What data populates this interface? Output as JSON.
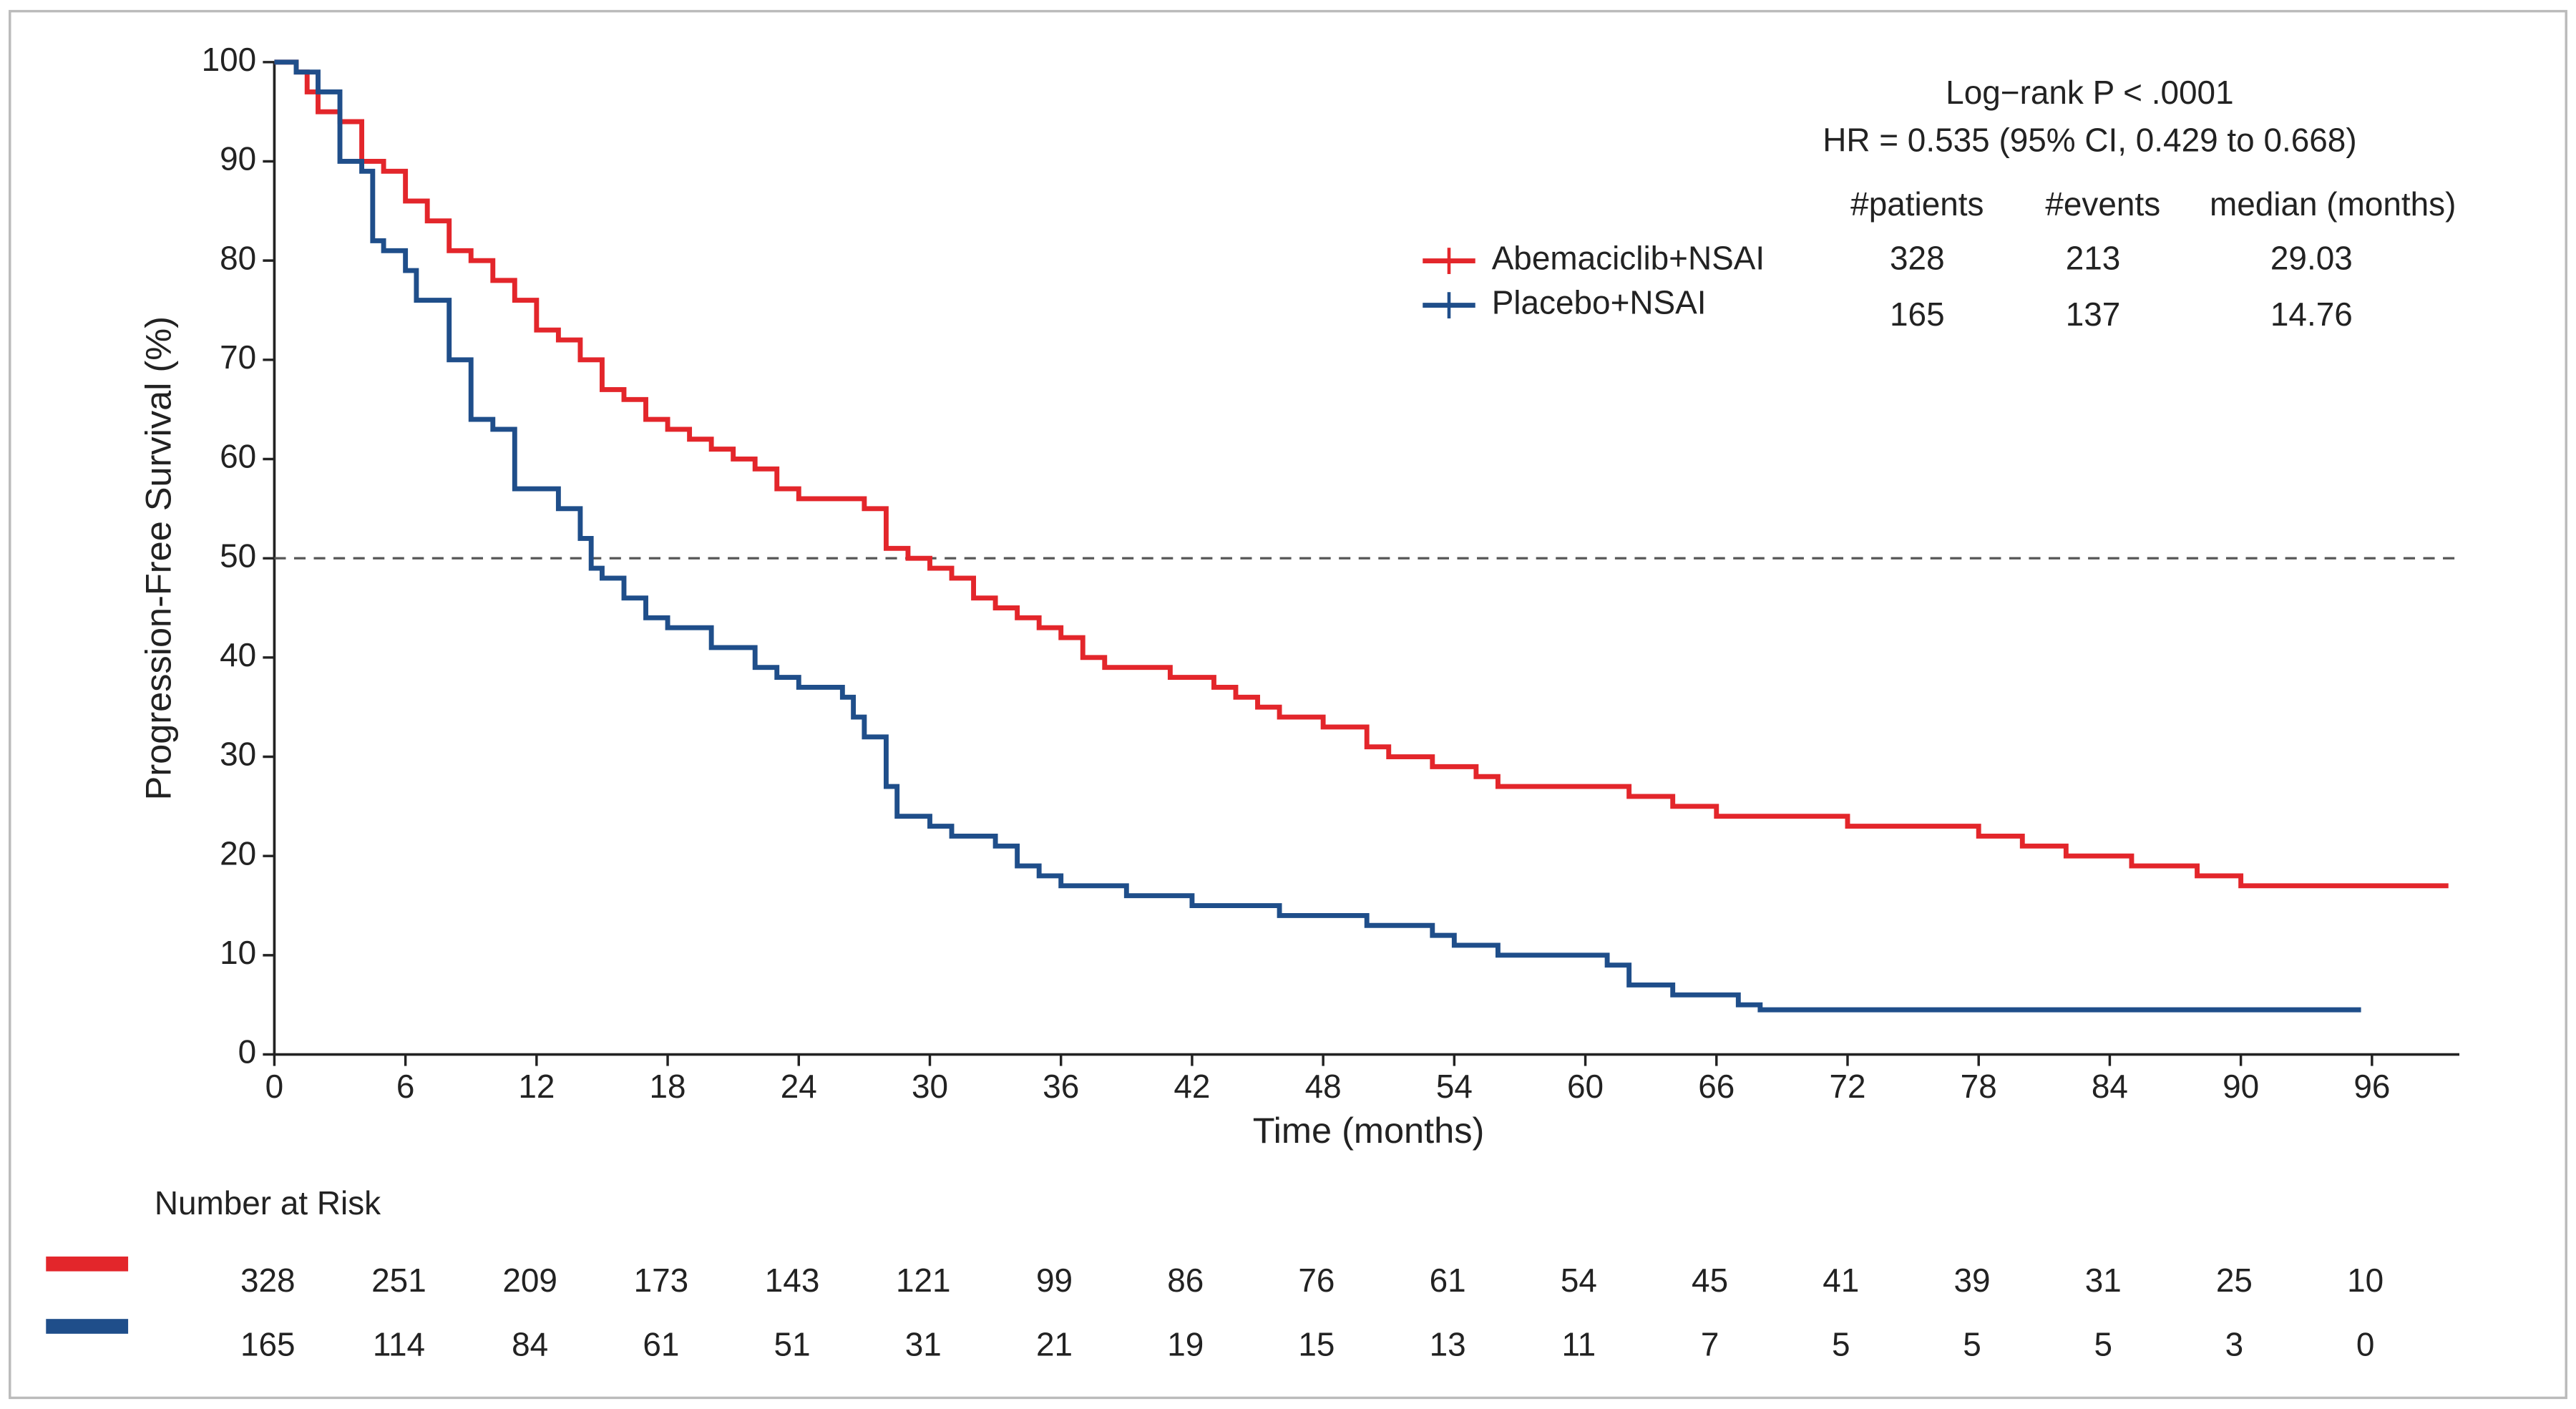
{
  "chart_data": {
    "type": "step",
    "x_label": "Time (months)",
    "y_label": "Progression-Free Survival (%)",
    "xlim": [
      0,
      100
    ],
    "ylim": [
      0,
      100
    ],
    "xticks": [
      0,
      6,
      12,
      18,
      24,
      30,
      36,
      42,
      48,
      54,
      60,
      66,
      72,
      78,
      84,
      90,
      96
    ],
    "yticks": [
      0,
      10,
      20,
      30,
      40,
      50,
      60,
      70,
      80,
      90,
      100
    ],
    "reference_line": 50,
    "annotations": [
      "Log−rank P < .0001",
      "HR =  0.535 (95% CI, 0.429 to 0.668)"
    ],
    "legend_headers": [
      "#patients",
      "#events",
      "median (months)"
    ],
    "series": [
      {
        "name": "Abemaciclib+NSAI",
        "color": "#e3262b",
        "patients": 328,
        "events": 213,
        "median": 29.03,
        "x": [
          0,
          1,
          1.5,
          2,
          3,
          4,
          5,
          6,
          7,
          8,
          9,
          10,
          11,
          12,
          13,
          14,
          15,
          16,
          17,
          18,
          19,
          20,
          21,
          22,
          23,
          24,
          27,
          28,
          29,
          30,
          31,
          32,
          33,
          34,
          35,
          36,
          37,
          38,
          41,
          43,
          44,
          45,
          46,
          48,
          50,
          51,
          53,
          55,
          56,
          62,
          64,
          66,
          72,
          78,
          80,
          82,
          85,
          88,
          90,
          99.5
        ],
        "y": [
          100,
          99,
          97,
          95,
          94,
          90,
          89,
          86,
          84,
          81,
          80,
          78,
          76,
          73,
          72,
          70,
          67,
          66,
          64,
          63,
          62,
          61,
          60,
          59,
          57,
          56,
          55,
          51,
          50,
          49,
          48,
          46,
          45,
          44,
          43,
          42,
          40,
          39,
          38,
          37,
          36,
          35,
          34,
          33,
          31,
          30,
          29,
          28,
          27,
          26,
          25,
          24,
          23,
          22,
          21,
          20,
          19,
          18,
          17,
          17
        ],
        "at_risk": [
          328,
          251,
          209,
          173,
          143,
          121,
          99,
          86,
          76,
          61,
          54,
          45,
          41,
          39,
          31,
          25,
          10
        ]
      },
      {
        "name": "Placebo+NSAI",
        "color": "#1f4e8a",
        "patients": 165,
        "events": 137,
        "median": 14.76,
        "x": [
          0,
          1,
          2,
          3,
          4,
          4.5,
          5,
          6,
          6.5,
          8,
          9,
          10,
          11,
          13,
          14,
          14.5,
          15,
          16,
          17,
          18,
          20,
          22,
          23,
          24,
          26,
          26.5,
          27,
          28,
          28.5,
          30,
          31,
          33,
          34,
          35,
          36,
          39,
          42,
          46,
          50,
          53,
          54,
          56,
          61,
          62,
          64,
          67,
          68,
          95.5
        ],
        "y": [
          100,
          99,
          97,
          90,
          89,
          82,
          81,
          79,
          76,
          70,
          64,
          63,
          57,
          55,
          52,
          49,
          48,
          46,
          44,
          43,
          41,
          39,
          38,
          37,
          36,
          34,
          32,
          27,
          24,
          23,
          22,
          21,
          19,
          18,
          17,
          16,
          15,
          14,
          13,
          12,
          11,
          10,
          9,
          7,
          6,
          5,
          4.5,
          4.5
        ],
        "at_risk": [
          165,
          114,
          84,
          61,
          51,
          31,
          21,
          19,
          15,
          13,
          11,
          7,
          5,
          5,
          5,
          3,
          0
        ]
      }
    ],
    "risk_table_title": "Number at Risk"
  }
}
